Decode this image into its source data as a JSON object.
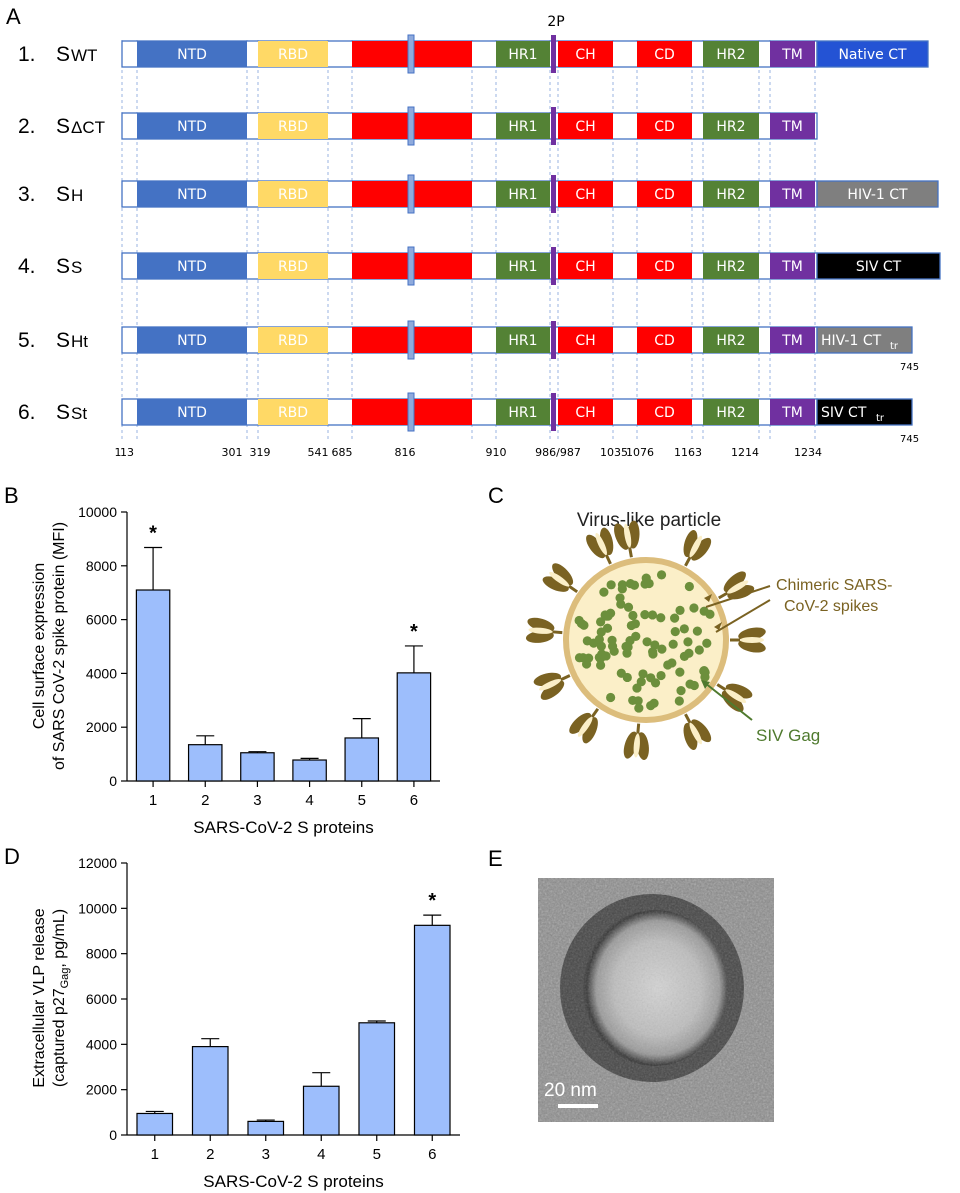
{
  "panel_letters": {
    "a": "A",
    "b": "B",
    "c": "C",
    "d": "D",
    "e": "E"
  },
  "panel_a": {
    "marker_label": "2P",
    "constructs": [
      {
        "num": "1.",
        "main": "S",
        "sub": "WT",
        "ct": "Native CT",
        "ct_sub": "",
        "ct_color": "#2453d4",
        "end_label": ""
      },
      {
        "num": "2.",
        "main": "S",
        "sub": "ΔCT",
        "ct": "",
        "ct_sub": "",
        "ct_color": "",
        "end_label": ""
      },
      {
        "num": "3.",
        "main": "S",
        "sub": "H",
        "ct": "HIV-1 CT",
        "ct_sub": "",
        "ct_color": "#7f7f7f",
        "end_label": ""
      },
      {
        "num": "4.",
        "main": "S",
        "sub": "S",
        "ct": "SIV CT",
        "ct_sub": "",
        "ct_color": "#000000",
        "end_label": ""
      },
      {
        "num": "5.",
        "main": "S",
        "sub": "Ht",
        "ct": "HIV-1 CT",
        "ct_sub": "tr",
        "ct_color": "#7f7f7f",
        "end_label": "745"
      },
      {
        "num": "6.",
        "main": "S",
        "sub": "St",
        "ct": "SIV CT",
        "ct_sub": "tr",
        "ct_color": "#000000",
        "end_label": "745"
      }
    ],
    "domains": [
      {
        "name": "NTD",
        "color": "#4472c4",
        "text_color": "#ffffff"
      },
      {
        "name": "RBD",
        "color": "#ffd966",
        "text_color": "#ffffff"
      },
      {
        "name": "",
        "color": "#ff0000",
        "text_color": "#ffffff"
      },
      {
        "name": "HR1",
        "color": "#548235",
        "text_color": "#ffffff"
      },
      {
        "name": "CH",
        "color": "#ff0000",
        "text_color": "#ffffff"
      },
      {
        "name": "CD",
        "color": "#ff0000",
        "text_color": "#ffffff"
      },
      {
        "name": "HR2",
        "color": "#548235",
        "text_color": "#ffffff"
      },
      {
        "name": "TM",
        "color": "#7030a0",
        "text_color": "#ffffff"
      }
    ],
    "positions": [
      "1",
      "13",
      "301",
      "319",
      "541",
      "685",
      "816",
      "910",
      "986/987",
      "1035",
      "1076",
      "1163",
      "1214",
      "1234"
    ]
  },
  "chart_data": [
    {
      "type": "bar",
      "panel": "B",
      "categories": [
        "1",
        "2",
        "3",
        "4",
        "5",
        "6"
      ],
      "values": [
        7100,
        1350,
        1050,
        780,
        1600,
        4020
      ],
      "errors": [
        1580,
        330,
        40,
        60,
        720,
        1000
      ],
      "significant": [
        "*",
        "",
        "",
        "",
        "",
        "*"
      ],
      "xlabel": "SARS-CoV-2 S proteins",
      "ylabel": [
        "Cell surface expression",
        "of SARS CoV-2 spike protein (MFI)"
      ],
      "ylim": [
        0,
        10000
      ],
      "yticks": [
        "0",
        "2000",
        "4000",
        "6000",
        "8000",
        "10000"
      ],
      "bar_color": "#9dbefc",
      "grid": false
    },
    {
      "type": "bar",
      "panel": "D",
      "categories": [
        "1",
        "2",
        "3",
        "4",
        "5",
        "6"
      ],
      "values": [
        950,
        3900,
        600,
        2150,
        4950,
        9250
      ],
      "errors": [
        90,
        350,
        60,
        600,
        80,
        450
      ],
      "significant": [
        "",
        "",
        "",
        "",
        "",
        "*"
      ],
      "xlabel": "SARS-CoV-2 S proteins",
      "ylabel": [
        "Extracellular VLP release",
        "(captured p27",
        "Gag",
        ", pg/mL)"
      ],
      "ylim": [
        0,
        12000
      ],
      "yticks": [
        "0",
        "2000",
        "4000",
        "6000",
        "8000",
        "10000",
        "12000"
      ],
      "bar_color": "#9dbefc",
      "grid": false
    }
  ],
  "panel_c": {
    "title": "Virus-like particle",
    "spike_label": [
      "Chimeric SARS-",
      "CoV-2 spikes"
    ],
    "gag_label": "SIV Gag",
    "particle_fill": "#fbefc8",
    "particle_ring": "#dcbd7c",
    "dot_color": "#6c8f3c",
    "spike_color": "#7a6222"
  },
  "panel_e": {
    "scale_bar_label": "20 nm"
  }
}
